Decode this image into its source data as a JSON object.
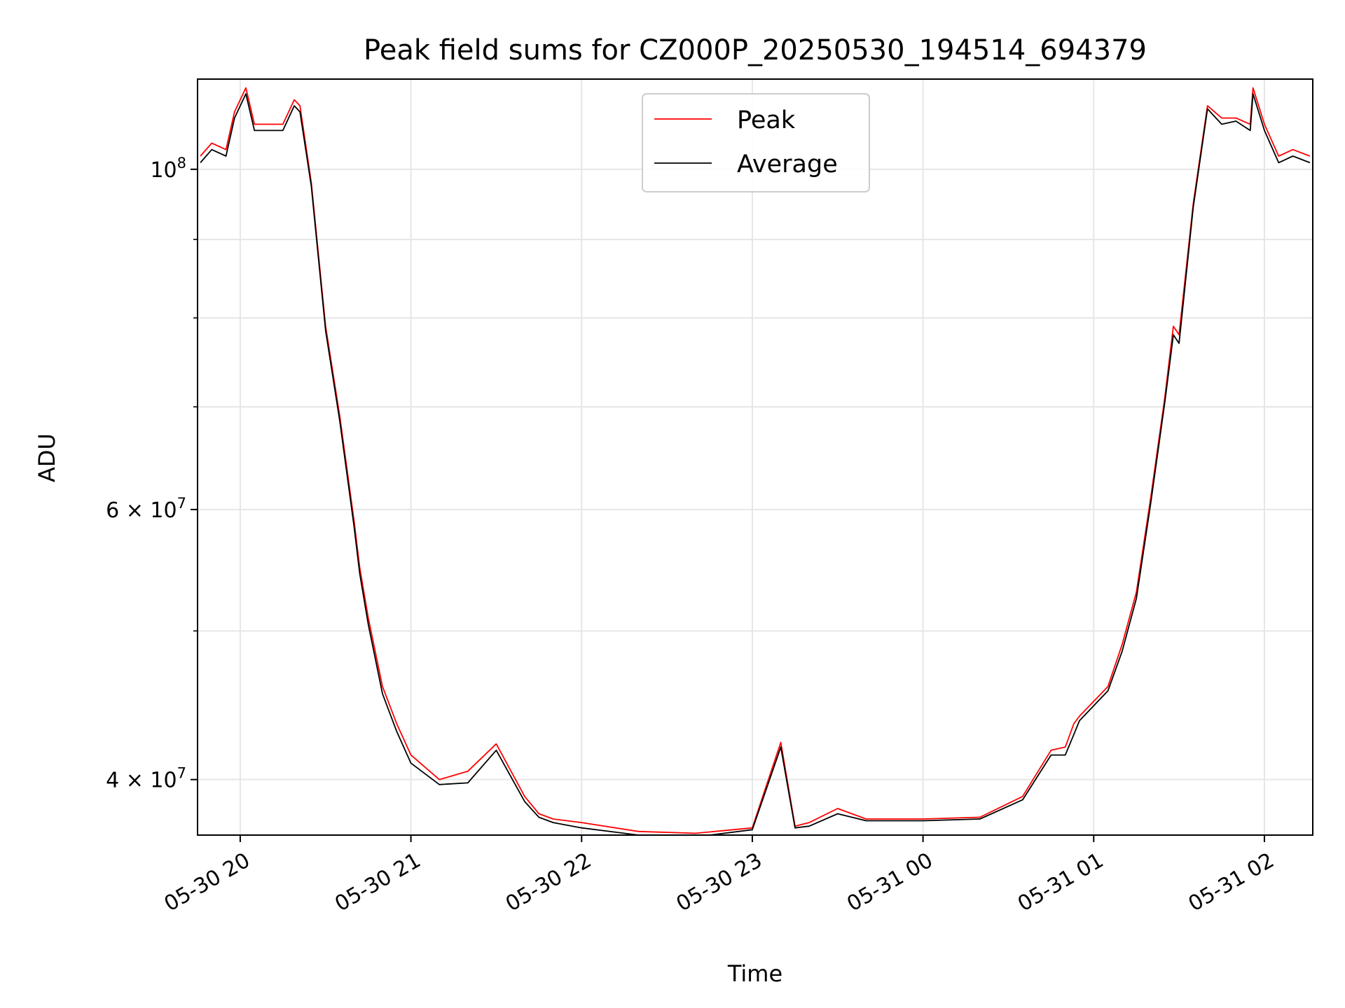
{
  "chart_data": {
    "type": "line",
    "title": "Peak field sums for CZ000P_20250530_194514_694379",
    "xlabel": "Time",
    "ylabel": "ADU",
    "yscale": "log",
    "xlim": [
      "2025-05-30 19:45",
      "2025-05-31 02:17"
    ],
    "ylim": [
      36800000,
      114500000
    ],
    "grid": true,
    "legend_position": "top-center",
    "x_ticks": [
      {
        "value": "2025-05-30 20:00",
        "label": "05-30 20"
      },
      {
        "value": "2025-05-30 21:00",
        "label": "05-30 21"
      },
      {
        "value": "2025-05-30 22:00",
        "label": "05-30 22"
      },
      {
        "value": "2025-05-30 23:00",
        "label": "05-30 23"
      },
      {
        "value": "2025-05-31 00:00",
        "label": "05-31 00"
      },
      {
        "value": "2025-05-31 01:00",
        "label": "05-31 01"
      },
      {
        "value": "2025-05-31 02:00",
        "label": "05-31 02"
      }
    ],
    "y_ticks": [
      {
        "value": 40000000,
        "base": "4",
        "exp": "7",
        "label": "4 × 10^7"
      },
      {
        "value": 60000000,
        "base": "6",
        "exp": "7",
        "label": "6 × 10^7"
      },
      {
        "value": 100000000,
        "base": "",
        "exp": "8",
        "label": "10^8"
      }
    ],
    "y_minor_ticks": [
      50000000,
      70000000,
      80000000,
      90000000
    ],
    "series": [
      {
        "name": "Peak",
        "color": "#ff0000",
        "x": [
          "2025-05-30 19:46",
          "2025-05-30 19:50",
          "2025-05-30 19:55",
          "2025-05-30 19:58",
          "2025-05-30 20:02",
          "2025-05-30 20:05",
          "2025-05-30 20:07",
          "2025-05-30 20:10",
          "2025-05-30 20:15",
          "2025-05-30 20:19",
          "2025-05-30 20:21",
          "2025-05-30 20:25",
          "2025-05-30 20:30",
          "2025-05-30 20:35",
          "2025-05-30 20:40",
          "2025-05-30 20:42",
          "2025-05-30 20:45",
          "2025-05-30 20:50",
          "2025-05-30 20:55",
          "2025-05-30 21:00",
          "2025-05-30 21:10",
          "2025-05-30 21:20",
          "2025-05-30 21:30",
          "2025-05-30 21:40",
          "2025-05-30 21:45",
          "2025-05-30 21:50",
          "2025-05-30 22:00",
          "2025-05-30 22:20",
          "2025-05-30 22:40",
          "2025-05-30 23:00",
          "2025-05-30 23:10",
          "2025-05-30 23:15",
          "2025-05-30 23:20",
          "2025-05-30 23:30",
          "2025-05-30 23:40",
          "2025-05-30 23:45",
          "2025-05-31 00:00",
          "2025-05-31 00:20",
          "2025-05-31 00:35",
          "2025-05-31 00:45",
          "2025-05-31 00:50",
          "2025-05-31 00:53",
          "2025-05-31 00:55",
          "2025-05-31 01:05",
          "2025-05-31 01:10",
          "2025-05-31 01:15",
          "2025-05-31 01:20",
          "2025-05-31 01:25",
          "2025-05-31 01:28",
          "2025-05-31 01:30",
          "2025-05-31 01:35",
          "2025-05-31 01:40",
          "2025-05-31 01:45",
          "2025-05-31 01:50",
          "2025-05-31 01:55",
          "2025-05-31 01:56",
          "2025-05-31 02:00",
          "2025-05-31 02:05",
          "2025-05-31 02:10",
          "2025-05-31 02:16"
        ],
        "values": [
          102000000,
          104000000,
          103000000,
          109000000,
          113000000,
          107000000,
          107000000,
          107000000,
          107000000,
          111000000,
          110000000,
          98000000,
          79000000,
          69000000,
          59000000,
          55000000,
          51000000,
          46000000,
          43500000,
          41500000,
          40000000,
          40500000,
          42200000,
          39000000,
          38000000,
          37700000,
          37500000,
          37000000,
          36900000,
          37200000,
          42300000,
          37300000,
          37500000,
          38300000,
          37700000,
          37700000,
          37700000,
          37800000,
          39000000,
          41800000,
          42000000,
          43500000,
          44000000,
          46000000,
          49000000,
          53000000,
          61000000,
          71000000,
          79000000,
          78000000,
          95000000,
          110000000,
          108000000,
          108000000,
          107000000,
          113000000,
          107000000,
          102000000,
          103000000,
          102000000
        ]
      },
      {
        "name": "Average",
        "color": "#000000",
        "x": [
          "2025-05-30 19:46",
          "2025-05-30 19:50",
          "2025-05-30 19:55",
          "2025-05-30 19:58",
          "2025-05-30 20:02",
          "2025-05-30 20:05",
          "2025-05-30 20:07",
          "2025-05-30 20:10",
          "2025-05-30 20:15",
          "2025-05-30 20:19",
          "2025-05-30 20:21",
          "2025-05-30 20:25",
          "2025-05-30 20:30",
          "2025-05-30 20:35",
          "2025-05-30 20:40",
          "2025-05-30 20:42",
          "2025-05-30 20:45",
          "2025-05-30 20:50",
          "2025-05-30 20:55",
          "2025-05-30 21:00",
          "2025-05-30 21:10",
          "2025-05-30 21:20",
          "2025-05-30 21:30",
          "2025-05-30 21:40",
          "2025-05-30 21:45",
          "2025-05-30 21:50",
          "2025-05-30 22:00",
          "2025-05-30 22:20",
          "2025-05-30 22:40",
          "2025-05-30 23:00",
          "2025-05-30 23:10",
          "2025-05-30 23:15",
          "2025-05-30 23:20",
          "2025-05-30 23:30",
          "2025-05-30 23:40",
          "2025-05-30 23:45",
          "2025-05-31 00:00",
          "2025-05-31 00:20",
          "2025-05-31 00:35",
          "2025-05-31 00:45",
          "2025-05-31 00:50",
          "2025-05-31 00:53",
          "2025-05-31 00:55",
          "2025-05-31 01:05",
          "2025-05-31 01:10",
          "2025-05-31 01:15",
          "2025-05-31 01:20",
          "2025-05-31 01:25",
          "2025-05-31 01:28",
          "2025-05-31 01:30",
          "2025-05-31 01:35",
          "2025-05-31 01:40",
          "2025-05-31 01:45",
          "2025-05-31 01:50",
          "2025-05-31 01:55",
          "2025-05-31 01:56",
          "2025-05-31 02:00",
          "2025-05-31 02:05",
          "2025-05-31 02:10",
          "2025-05-31 02:16"
        ],
        "values": [
          101000000,
          103000000,
          102000000,
          108000000,
          112000000,
          106000000,
          106000000,
          106000000,
          106000000,
          110000000,
          109000000,
          97500000,
          78500000,
          68500000,
          58500000,
          54500000,
          50500000,
          45500000,
          43000000,
          41000000,
          39700000,
          39800000,
          41800000,
          38700000,
          37800000,
          37500000,
          37200000,
          36800000,
          36700000,
          37100000,
          42000000,
          37200000,
          37300000,
          38000000,
          37600000,
          37600000,
          37600000,
          37700000,
          38800000,
          41500000,
          41500000,
          42800000,
          43700000,
          45700000,
          48500000,
          52500000,
          60500000,
          70500000,
          78000000,
          77000000,
          94500000,
          109500000,
          107000000,
          107500000,
          106000000,
          112000000,
          106000000,
          101000000,
          102000000,
          101000000
        ]
      }
    ]
  }
}
